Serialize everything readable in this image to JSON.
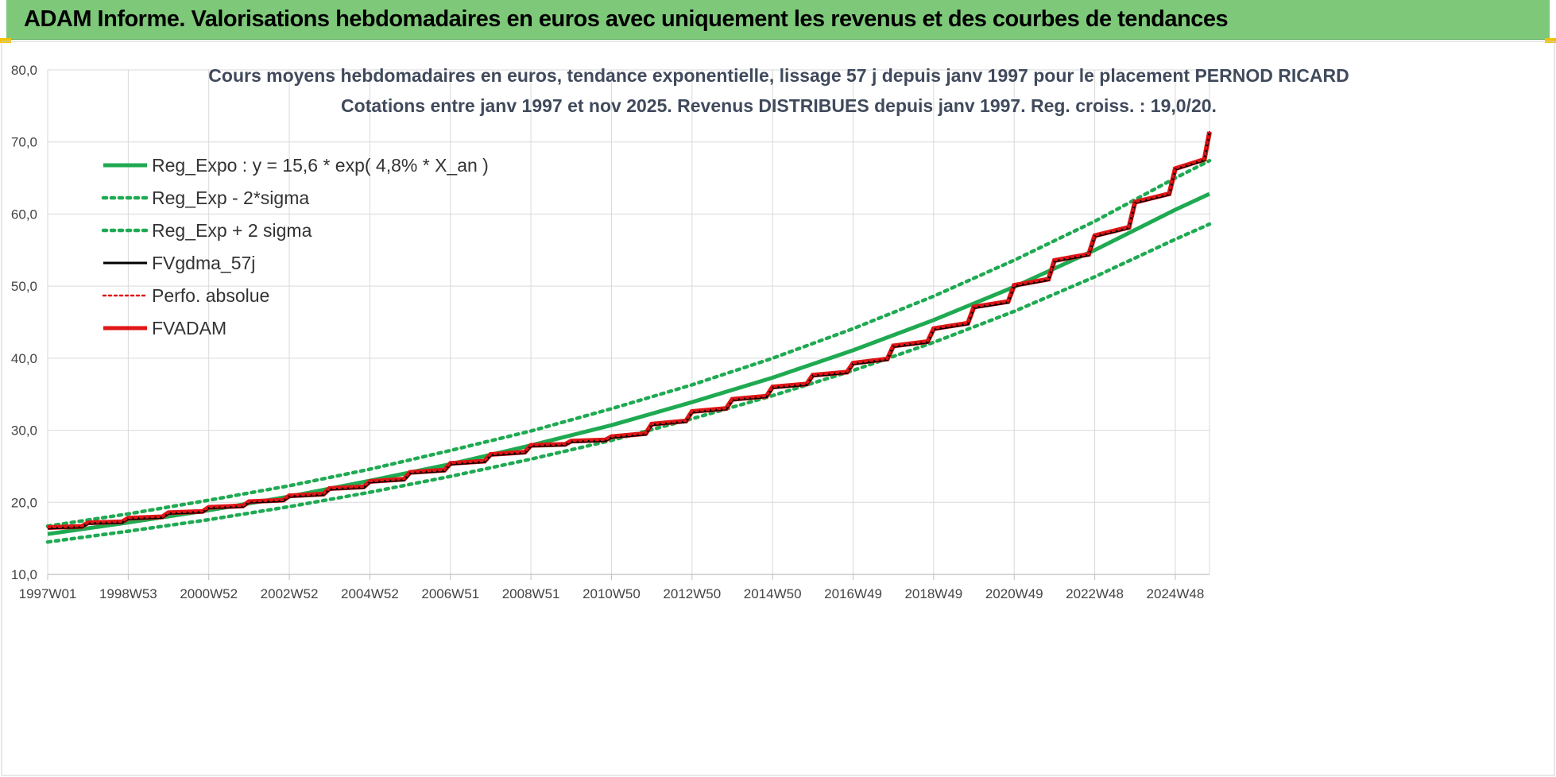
{
  "banner": {
    "title": "ADAM Informe. Valorisations hebdomadaires en euros avec uniquement les revenus et des courbes de tendances"
  },
  "chart_data": {
    "type": "line",
    "title_lines": [
      "Cours moyens hebdomadaires en euros, tendance exponentielle, lissage 57 j depuis janv 1997 pour le placement PERNOD RICARD",
      "Cotations entre janv 1997 et nov 2025. Revenus DISTRIBUES depuis janv 1997. Reg. croiss. : 19,0/20."
    ],
    "xlabel": "",
    "ylabel": "",
    "x_range_years": [
      1997.0,
      2025.85
    ],
    "ylim": [
      10,
      80
    ],
    "y_ticks": [
      "10,0",
      "20,0",
      "30,0",
      "40,0",
      "50,0",
      "60,0",
      "70,0",
      "80,0"
    ],
    "x_ticks": [
      {
        "label": "1997W01",
        "year": 1997.0
      },
      {
        "label": "1998W53",
        "year": 1999.0
      },
      {
        "label": "2000W52",
        "year": 2001.0
      },
      {
        "label": "2002W52",
        "year": 2003.0
      },
      {
        "label": "2004W52",
        "year": 2005.0
      },
      {
        "label": "2006W51",
        "year": 2007.0
      },
      {
        "label": "2008W51",
        "year": 2009.0
      },
      {
        "label": "2010W50",
        "year": 2011.0
      },
      {
        "label": "2012W50",
        "year": 2013.0
      },
      {
        "label": "2014W50",
        "year": 2015.0
      },
      {
        "label": "2016W49",
        "year": 2017.0
      },
      {
        "label": "2018W49",
        "year": 2019.0
      },
      {
        "label": "2020W49",
        "year": 2021.0
      },
      {
        "label": "2022W48",
        "year": 2023.0
      },
      {
        "label": "2024W48",
        "year": 2025.0
      }
    ],
    "grid": true,
    "legend_position": "top-left",
    "series": [
      {
        "name": "Reg_Expo : y = 15,6 * exp( 4,8% *  X_an )",
        "color": "#1faa52",
        "style": "solid",
        "x": [
          1997,
          1999,
          2001,
          2003,
          2005,
          2007,
          2009,
          2011,
          2013,
          2015,
          2017,
          2019,
          2021,
          2023,
          2025,
          2025.85
        ],
        "y": [
          15.6,
          17.2,
          18.9,
          20.8,
          23.0,
          25.3,
          27.9,
          30.7,
          33.9,
          37.3,
          41.1,
          45.3,
          49.9,
          55.0,
          60.6,
          62.8
        ]
      },
      {
        "name": "Reg_Exp - 2*sigma",
        "color": "#1faa52",
        "style": "dotted",
        "x": [
          1997,
          1999,
          2001,
          2003,
          2005,
          2007,
          2009,
          2011,
          2013,
          2015,
          2017,
          2019,
          2021,
          2023,
          2025,
          2025.85
        ],
        "y": [
          14.5,
          16.0,
          17.6,
          19.4,
          21.4,
          23.6,
          26.0,
          28.6,
          31.6,
          34.8,
          38.3,
          42.2,
          46.5,
          51.3,
          56.5,
          58.6
        ]
      },
      {
        "name": "Reg_Exp + 2 sigma",
        "color": "#1faa52",
        "style": "dotted",
        "x": [
          1997,
          1999,
          2001,
          2003,
          2005,
          2007,
          2009,
          2011,
          2013,
          2015,
          2017,
          2019,
          2021,
          2023,
          2025,
          2025.85
        ],
        "y": [
          16.7,
          18.4,
          20.3,
          22.3,
          24.6,
          27.2,
          29.9,
          33.0,
          36.3,
          40.0,
          44.1,
          48.6,
          53.6,
          59.0,
          65.0,
          67.4
        ]
      },
      {
        "name": "FVgdma_57j",
        "color": "#000000",
        "style": "solid",
        "x": [
          1997,
          1999,
          2001,
          2003,
          2005,
          2007,
          2009,
          2011,
          2013,
          2015,
          2017,
          2019,
          2021,
          2023,
          2025,
          2025.85
        ],
        "y": [
          16.4,
          17.7,
          19.2,
          20.8,
          22.8,
          25.3,
          27.8,
          29.0,
          32.5,
          35.9,
          39.2,
          44.0,
          50.0,
          56.9,
          66.2,
          71.3
        ]
      },
      {
        "name": "Perfo. absolue",
        "color": "#e01515",
        "style": "dotted",
        "x": [
          1997,
          1999,
          2001,
          2003,
          2005,
          2007,
          2009,
          2011,
          2013,
          2015,
          2017,
          2019,
          2021,
          2023,
          2025,
          2025.85
        ],
        "y": [
          16.5,
          17.8,
          19.3,
          20.9,
          22.9,
          25.4,
          27.9,
          29.1,
          32.6,
          36.0,
          39.3,
          44.1,
          50.1,
          57.0,
          66.3,
          71.4
        ]
      },
      {
        "name": "FVADAM",
        "color": "#e01515",
        "style": "step",
        "x": [
          1997,
          1999,
          2001,
          2003,
          2005,
          2007,
          2009,
          2011,
          2013,
          2015,
          2017,
          2019,
          2021,
          2023,
          2025,
          2025.85
        ],
        "y": [
          16.5,
          17.8,
          19.3,
          20.9,
          22.9,
          25.4,
          27.9,
          29.1,
          32.6,
          36.0,
          39.3,
          44.1,
          50.1,
          57.0,
          66.3,
          71.4
        ]
      }
    ]
  }
}
